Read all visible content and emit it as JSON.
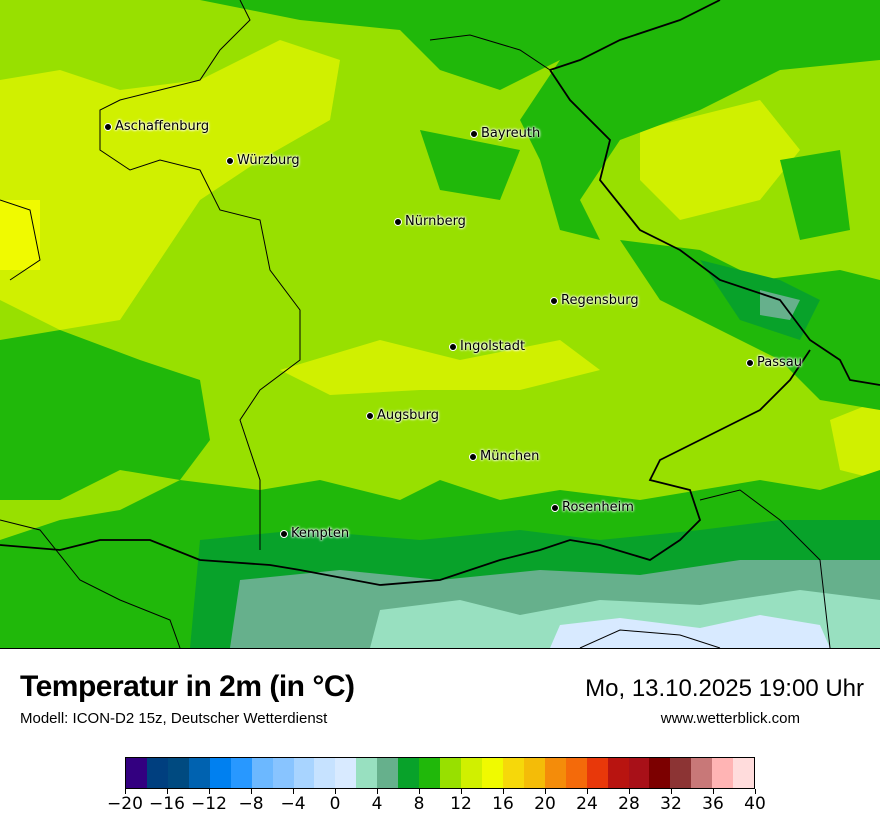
{
  "header": {
    "title": "Temperatur in 2m (in °C)",
    "subtitle": "Modell: ICON-D2 15z, Deutscher Wetterdienst",
    "datetime": "Mo, 13.10.2025 19:00 Uhr",
    "website": "www.wetterblick.com"
  },
  "map": {
    "cities": [
      {
        "name": "Aschaffenburg"
      },
      {
        "name": "Würzburg"
      },
      {
        "name": "Bayreuth"
      },
      {
        "name": "Nürnberg"
      },
      {
        "name": "Regensburg"
      },
      {
        "name": "Ingolstadt"
      },
      {
        "name": "Passau"
      },
      {
        "name": "Augsburg"
      },
      {
        "name": "München"
      },
      {
        "name": "Rosenheim"
      },
      {
        "name": "Kempten"
      }
    ],
    "dominant_band_color": "#98e000"
  },
  "legend": {
    "unit": "°C",
    "bounds": [
      -20,
      -18,
      -16,
      -14,
      -12,
      -10,
      -8,
      -6,
      -4,
      -2,
      0,
      2,
      4,
      6,
      8,
      10,
      12,
      14,
      16,
      18,
      20,
      22,
      24,
      26,
      28,
      30,
      32,
      34,
      36,
      38,
      40
    ],
    "tick_labels": [
      "−20",
      "−16",
      "−12",
      "−8",
      "−4",
      "0",
      "4",
      "8",
      "12",
      "16",
      "20",
      "24",
      "28",
      "32",
      "36",
      "40"
    ],
    "colors": [
      "#330080",
      "#003f7f",
      "#004a80",
      "#0062b0",
      "#0080f0",
      "#2898ff",
      "#6cb8ff",
      "#88c4ff",
      "#a8d4ff",
      "#c6e2ff",
      "#d8eaff",
      "#98e0c0",
      "#66b08c",
      "#08a22a",
      "#20b80a",
      "#98e000",
      "#d0f000",
      "#f0fa00",
      "#f6d80a",
      "#f4bc08",
      "#f48c0a",
      "#f46a0a",
      "#e8380a",
      "#b81410",
      "#a81018",
      "#7c0000",
      "#8c3434",
      "#c87878",
      "#ffb4b4",
      "#ffdcdc"
    ]
  }
}
